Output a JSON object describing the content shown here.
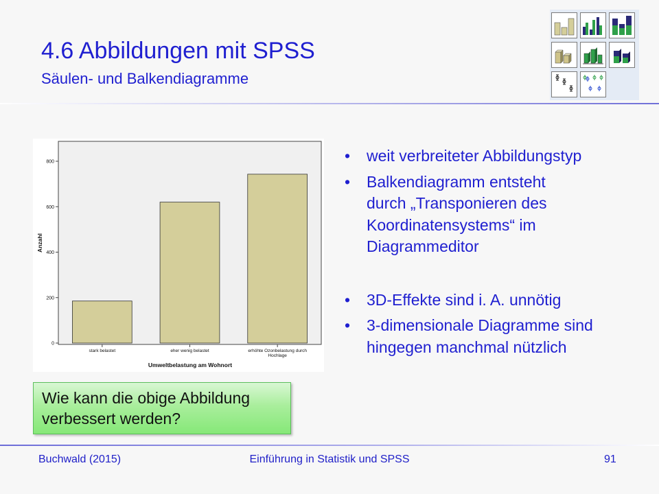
{
  "slide": {
    "title": "4.6 Abbildungen mit SPSS",
    "subtitle": "Säulen- und Balkendiagramme"
  },
  "toolbar_icons": [
    {
      "name": "simple-bar-chart-icon"
    },
    {
      "name": "clustered-bar-chart-icon"
    },
    {
      "name": "stacked-bar-chart-icon"
    },
    {
      "name": "3d-bar-chart-icon"
    },
    {
      "name": "3d-clustered-bar-chart-icon"
    },
    {
      "name": "3d-stacked-bar-chart-icon"
    },
    {
      "name": "simple-error-bar-icon"
    },
    {
      "name": "clustered-error-bar-icon"
    }
  ],
  "bullets": [
    "weit verbreiteter Abbildungstyp",
    "Balkendiagramm entsteht durch „Transponieren des Koordinatensystems“ im Diagrammeditor",
    "3D-Effekte sind i. A. unnötig",
    "3-dimensionale Diagramme sind hingegen manchmal nützlich"
  ],
  "bullet_symbol": "•",
  "callout": {
    "text": "Wie kann die obige Abbildung verbessert werden?"
  },
  "footer": {
    "left": "Buchwald (2015)",
    "center": "Einführung in Statistik und SPSS",
    "right": "91"
  },
  "colors": {
    "title": "#1f1fd0",
    "bar_fill": "#d4ce9a",
    "plot_background": "#f0f0f0",
    "callout_green": "#86e878"
  },
  "chart_data": {
    "type": "bar",
    "categories": [
      "stark belastet",
      "eher wenig belastet",
      "erhöhte Ozonbelastung durch Hochlage"
    ],
    "values": [
      185,
      620,
      743
    ],
    "xlabel": "Umweltbelastung am Wohnort",
    "ylabel": "Anzahl",
    "ylim": [
      0,
      880
    ],
    "yticks": [
      0,
      200,
      400,
      600,
      800
    ],
    "ytick_labels": [
      "0",
      "200",
      "400",
      "600",
      "800"
    ],
    "grid": false
  }
}
